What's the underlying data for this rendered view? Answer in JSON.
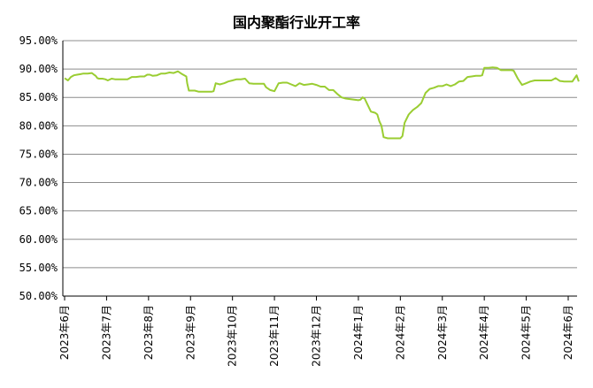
{
  "chart_data": {
    "type": "line",
    "title": "国内聚酯行业开工率",
    "xlabel": "",
    "ylabel": "",
    "ylim": [
      50,
      95
    ],
    "y_ticks": [
      "95.00%",
      "90.00%",
      "85.00%",
      "80.00%",
      "75.00%",
      "70.00%",
      "65.00%",
      "60.00%",
      "55.00%",
      "50.00%"
    ],
    "x_ticks": [
      "2023年6月",
      "2023年7月",
      "2023年8月",
      "2023年9月",
      "2023年10月",
      "2023年11月",
      "2023年12月",
      "2024年1月",
      "2024年2月",
      "2024年3月",
      "2024年4月",
      "2024年5月",
      "2024年6月"
    ],
    "grid": true,
    "legend": "none",
    "line_color": "#9acd32",
    "series": [
      {
        "x": [
          0.0,
          0.08,
          0.15,
          0.22,
          0.3,
          0.38,
          0.45,
          0.55,
          0.65,
          0.7,
          0.74,
          0.78,
          0.82,
          0.9,
          0.97,
          1.03,
          1.12,
          1.2,
          1.3,
          1.4,
          1.5,
          1.6,
          1.7,
          1.8,
          1.9,
          1.97,
          2.03,
          2.1,
          2.2,
          2.3,
          2.4,
          2.5,
          2.6,
          2.7,
          2.8,
          2.9,
          2.92,
          2.96,
          3.0,
          3.1,
          3.2,
          3.3,
          3.4,
          3.5,
          3.55,
          3.6,
          3.7,
          3.8,
          3.9,
          4.0,
          4.1,
          4.2,
          4.3,
          4.4,
          4.5,
          4.6,
          4.7,
          4.75,
          4.8,
          4.9,
          5.0,
          5.1,
          5.2,
          5.3,
          5.4,
          5.5,
          5.6,
          5.7,
          5.8,
          5.9,
          6.0,
          6.1,
          6.2,
          6.3,
          6.4,
          6.5,
          6.6,
          6.7,
          6.8,
          6.9,
          7.0,
          7.05,
          7.1,
          7.15,
          7.2,
          7.3,
          7.4,
          7.45,
          7.5,
          7.55,
          7.6,
          7.7,
          7.8,
          7.9,
          8.0,
          8.05,
          8.1,
          8.2,
          8.3,
          8.4,
          8.5,
          8.6,
          8.7,
          8.8,
          8.9,
          9.0,
          9.1,
          9.2,
          9.3,
          9.4,
          9.5,
          9.6,
          9.7,
          9.8,
          9.9,
          9.95,
          10.0,
          10.1,
          10.2,
          10.3,
          10.4,
          10.5,
          10.6,
          10.65,
          10.7,
          10.8,
          10.9,
          11.0,
          11.1,
          11.2,
          11.3,
          11.4,
          11.5,
          11.6,
          11.7,
          11.8,
          11.9,
          12.0,
          12.05,
          12.1,
          12.2,
          12.25
        ],
        "values": [
          88.4,
          88.0,
          88.6,
          88.9,
          89.0,
          89.1,
          89.2,
          89.2,
          89.3,
          89.0,
          88.8,
          88.4,
          88.3,
          88.3,
          88.2,
          88.0,
          88.3,
          88.2,
          88.2,
          88.2,
          88.2,
          88.6,
          88.6,
          88.7,
          88.7,
          89.0,
          89.0,
          88.8,
          88.9,
          89.2,
          89.2,
          89.4,
          89.3,
          89.6,
          89.1,
          88.7,
          87.5,
          86.2,
          86.2,
          86.2,
          86.0,
          86.0,
          86.0,
          86.0,
          86.1,
          87.5,
          87.3,
          87.5,
          87.8,
          88.0,
          88.2,
          88.2,
          88.3,
          87.5,
          87.4,
          87.4,
          87.4,
          87.4,
          86.8,
          86.3,
          86.1,
          87.5,
          87.6,
          87.6,
          87.3,
          87.0,
          87.5,
          87.2,
          87.3,
          87.4,
          87.2,
          86.9,
          86.9,
          86.3,
          86.3,
          85.6,
          85.0,
          84.8,
          84.7,
          84.6,
          84.5,
          84.6,
          85.0,
          84.8,
          84.0,
          82.5,
          82.3,
          82.0,
          80.8,
          80.0,
          78.0,
          77.8,
          77.8,
          77.8,
          77.8,
          78.2,
          80.5,
          82.0,
          82.8,
          83.3,
          84.0,
          85.8,
          86.5,
          86.7,
          87.0,
          87.0,
          87.3,
          87.0,
          87.3,
          87.8,
          87.9,
          88.6,
          88.7,
          88.8,
          88.8,
          88.9,
          90.2,
          90.2,
          90.3,
          90.2,
          89.8,
          89.8,
          89.8,
          89.8,
          89.7,
          88.3,
          87.2,
          87.5,
          87.8,
          88.0,
          88.0,
          88.0,
          88.0,
          88.0,
          88.4,
          87.9,
          87.8,
          87.8,
          87.8,
          87.8,
          88.9,
          87.8
        ]
      }
    ]
  }
}
